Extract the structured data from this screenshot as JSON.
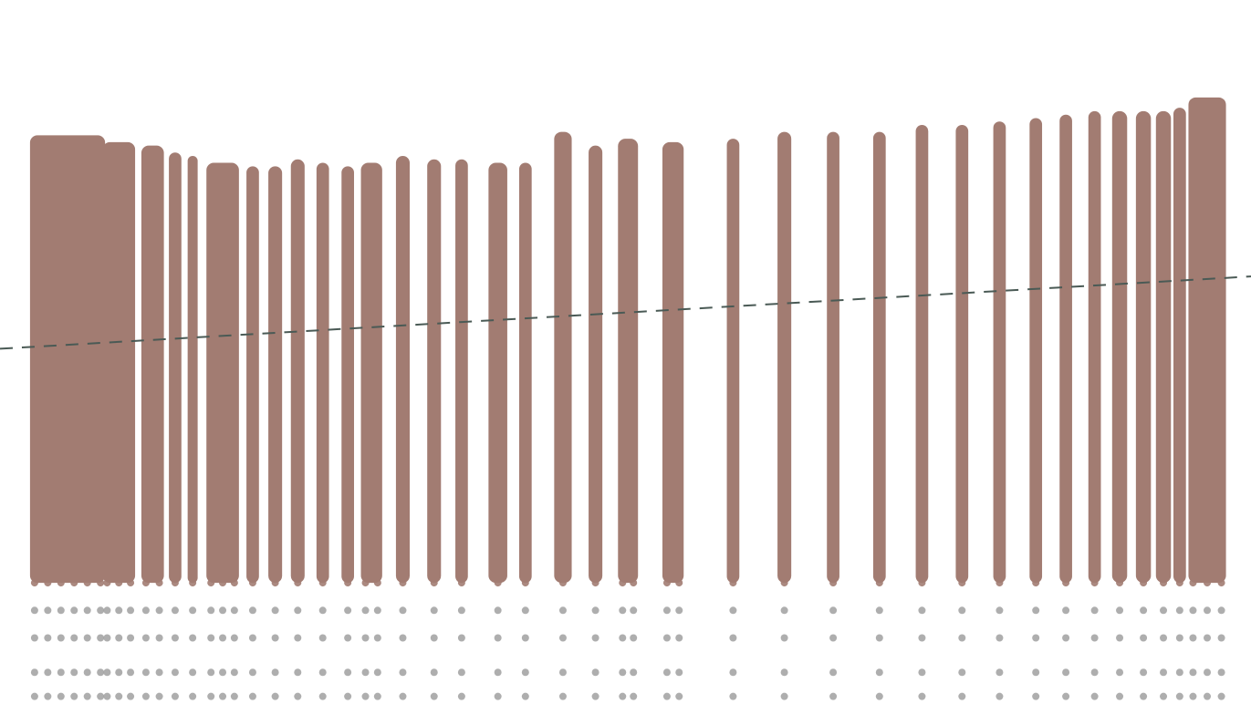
{
  "chart_data": {
    "type": "scatter",
    "title": "",
    "xlabel": "",
    "ylabel": "",
    "grid": false,
    "legend": "none",
    "xlim": [
      0,
      100
    ],
    "ylim": [
      0,
      100
    ],
    "colors": {
      "dense": "#a27c72",
      "sparse": "#9a9a9a",
      "trend": "#4a5a55",
      "background": "#ffffff"
    },
    "series": [
      {
        "columns": [
          {
            "x": 5.4,
            "top": 83.0,
            "width": 6.0
          },
          {
            "x": 9.5,
            "top": 82.0,
            "width": 2.6
          },
          {
            "x": 12.2,
            "top": 81.5,
            "width": 1.8
          },
          {
            "x": 14.0,
            "top": 80.5,
            "width": 1.0
          },
          {
            "x": 15.4,
            "top": 80.0,
            "width": 0.8
          },
          {
            "x": 17.8,
            "top": 79.0,
            "width": 2.6
          },
          {
            "x": 20.2,
            "top": 78.5,
            "width": 1.0
          },
          {
            "x": 22.0,
            "top": 78.5,
            "width": 1.1
          },
          {
            "x": 23.8,
            "top": 79.5,
            "width": 1.1
          },
          {
            "x": 25.8,
            "top": 79.0,
            "width": 1.0
          },
          {
            "x": 27.8,
            "top": 78.5,
            "width": 1.0
          },
          {
            "x": 29.7,
            "top": 79.0,
            "width": 1.7
          },
          {
            "x": 32.2,
            "top": 80.0,
            "width": 1.1
          },
          {
            "x": 34.7,
            "top": 79.5,
            "width": 1.1
          },
          {
            "x": 36.9,
            "top": 79.5,
            "width": 1.0
          },
          {
            "x": 39.8,
            "top": 79.0,
            "width": 1.5
          },
          {
            "x": 42.0,
            "top": 79.0,
            "width": 1.0
          },
          {
            "x": 45.0,
            "top": 83.5,
            "width": 1.4
          },
          {
            "x": 47.6,
            "top": 81.5,
            "width": 1.1
          },
          {
            "x": 50.2,
            "top": 82.5,
            "width": 1.6
          },
          {
            "x": 53.8,
            "top": 82.0,
            "width": 1.7
          },
          {
            "x": 58.6,
            "top": 82.5,
            "width": 1.0
          },
          {
            "x": 62.7,
            "top": 83.5,
            "width": 1.1
          },
          {
            "x": 66.6,
            "top": 83.5,
            "width": 1.0
          },
          {
            "x": 70.3,
            "top": 83.5,
            "width": 1.0
          },
          {
            "x": 73.7,
            "top": 84.5,
            "width": 1.0
          },
          {
            "x": 76.9,
            "top": 84.5,
            "width": 1.0
          },
          {
            "x": 79.9,
            "top": 85.0,
            "width": 1.0
          },
          {
            "x": 82.8,
            "top": 85.5,
            "width": 1.0
          },
          {
            "x": 85.2,
            "top": 86.0,
            "width": 1.0
          },
          {
            "x": 87.5,
            "top": 86.5,
            "width": 1.0
          },
          {
            "x": 89.5,
            "top": 86.5,
            "width": 1.2
          },
          {
            "x": 91.4,
            "top": 86.5,
            "width": 1.2
          },
          {
            "x": 93.0,
            "top": 86.5,
            "width": 1.2
          },
          {
            "x": 94.3,
            "top": 87.0,
            "width": 1.0
          },
          {
            "x": 96.5,
            "top": 88.5,
            "width": 3.0
          }
        ],
        "bottom": 18.0,
        "discrete_y_levels": [
          18.0,
          14.0,
          10.0,
          5.0,
          1.5
        ]
      }
    ],
    "trendline": {
      "style": "dashed",
      "x": [
        0,
        100
      ],
      "y": [
        52.0,
        62.5
      ]
    }
  }
}
